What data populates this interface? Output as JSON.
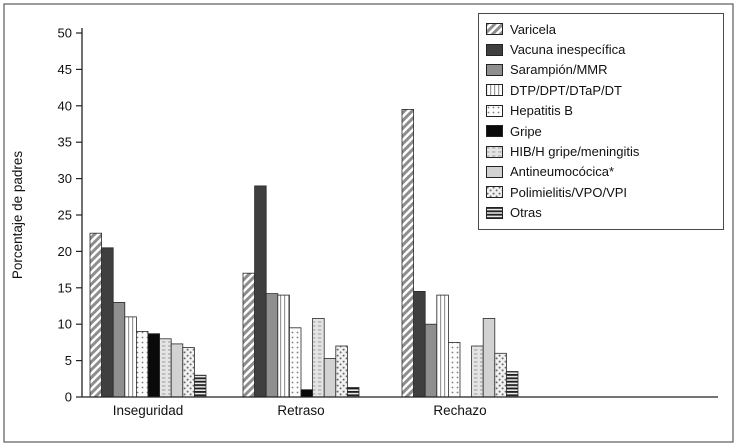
{
  "chart_data": {
    "type": "bar",
    "title": "",
    "xlabel": "",
    "ylabel": "Porcentaje de padres",
    "ylim": [
      0,
      50
    ],
    "ytick_step": 5,
    "grid": false,
    "legend_position": "top-right",
    "categories": [
      "Inseguridad",
      "Retraso",
      "Rechazo"
    ],
    "series": [
      {
        "name": "Varicela",
        "pattern": "diagonal-hatch",
        "values": [
          22.5,
          17.0,
          39.5
        ]
      },
      {
        "name": "Vacuna inespecífica",
        "pattern": "solid-dark",
        "values": [
          20.5,
          29.0,
          14.5
        ]
      },
      {
        "name": "Sarampión/MMR",
        "pattern": "solid-gray",
        "values": [
          13.0,
          14.2,
          10.0
        ]
      },
      {
        "name": "DTP/DPT/DTaP/DT",
        "pattern": "vertical-lines",
        "values": [
          11.0,
          14.0,
          14.0
        ]
      },
      {
        "name": "Hepatitis B",
        "pattern": "sparse-dots",
        "values": [
          9.0,
          9.5,
          7.5
        ]
      },
      {
        "name": "Gripe",
        "pattern": "solid-black",
        "values": [
          8.7,
          1.0,
          0.0
        ]
      },
      {
        "name": "HIB/H gripe/meningitis",
        "pattern": "dash-texture",
        "values": [
          8.0,
          10.8,
          7.0
        ]
      },
      {
        "name": "Antineumocócica*",
        "pattern": "solid-light",
        "values": [
          7.3,
          5.3,
          10.8
        ]
      },
      {
        "name": "Polimielitis/VPO/VPI",
        "pattern": "speckled",
        "values": [
          6.8,
          7.0,
          6.0
        ]
      },
      {
        "name": "Otras",
        "pattern": "horizontal-lines",
        "values": [
          3.0,
          1.3,
          3.5
        ]
      }
    ],
    "colors": {
      "solid_dark": "#3f3f3f",
      "solid_gray": "#8f8f8f",
      "solid_black": "#0a0a0a",
      "solid_light": "#d2d2d2",
      "axis": "#222222",
      "frame": "#5a5a5a"
    }
  }
}
